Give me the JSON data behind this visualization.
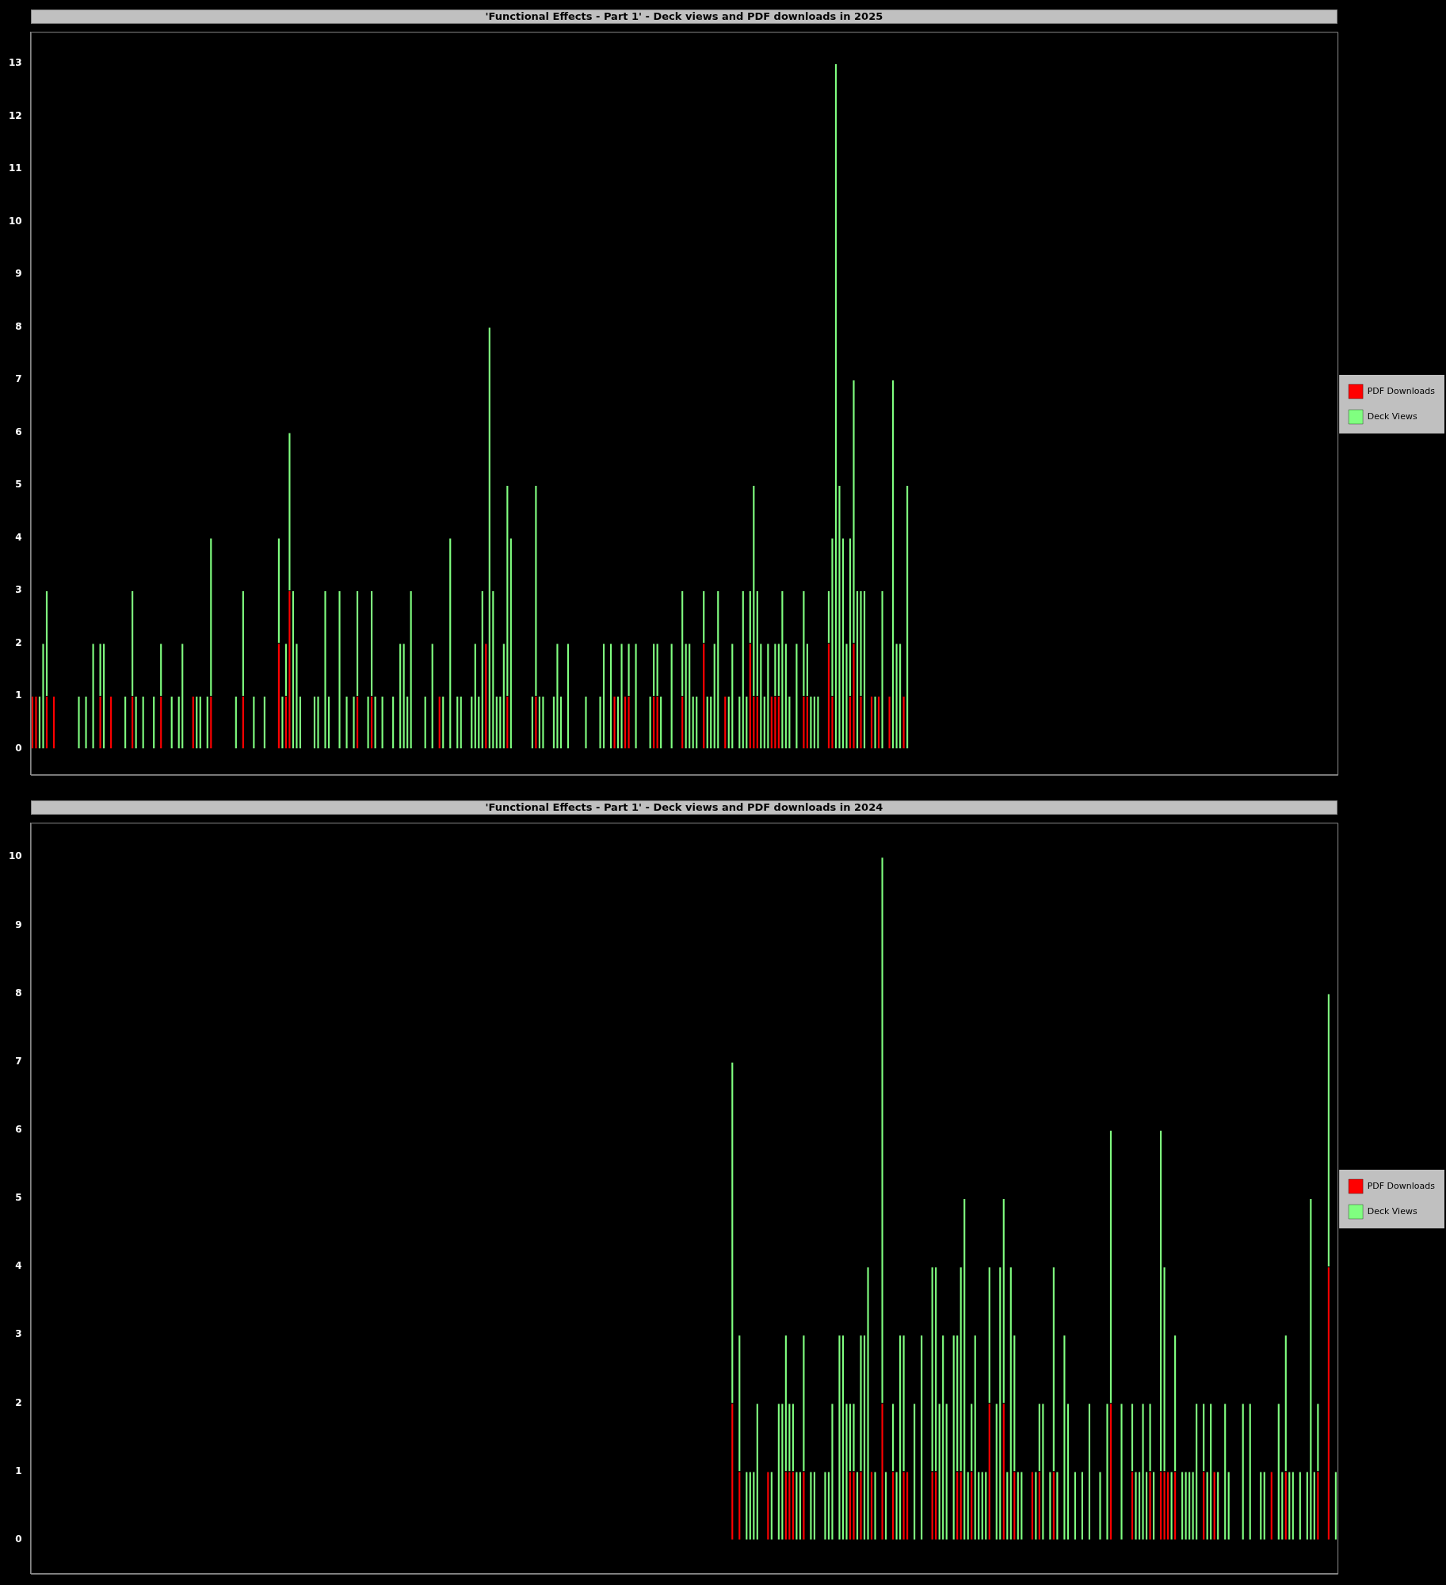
{
  "chart_data": [
    {
      "type": "bar",
      "title": "'Functional Effects - Part 1' - Deck views and PDF downloads in 2025",
      "stacked": true,
      "legend": "right",
      "grid": false,
      "tick_labels": "y",
      "ylim": [
        -0.5,
        13.6
      ],
      "yticks": [
        0,
        1,
        2,
        3,
        4,
        5,
        6,
        7,
        8,
        9,
        10,
        11,
        12,
        13
      ],
      "categories": [
        null,
        null,
        null,
        null,
        null,
        null,
        null,
        null,
        null,
        null,
        null,
        null,
        null,
        null,
        null,
        null,
        null,
        null,
        null,
        null,
        null,
        null,
        null,
        null,
        null,
        null,
        null,
        null,
        null,
        null,
        null,
        null,
        null,
        null,
        null,
        null,
        null,
        null,
        null,
        null,
        null,
        null,
        null,
        null,
        null,
        null,
        null,
        null,
        null,
        null,
        null,
        null,
        null,
        null,
        null,
        null,
        null,
        null,
        null,
        null,
        null,
        null,
        null,
        null,
        null,
        null,
        null,
        null,
        null,
        null,
        null,
        null,
        null,
        null,
        null,
        null,
        null,
        null,
        null,
        null,
        null,
        null,
        null,
        null,
        null,
        null,
        null,
        null,
        null,
        null,
        null,
        null,
        null,
        null,
        null,
        null,
        null,
        null,
        null,
        null,
        null,
        null,
        null,
        null,
        null,
        null,
        null,
        null,
        null,
        null,
        null,
        null,
        null,
        null,
        null,
        null,
        null,
        null,
        null,
        null,
        null,
        null,
        null,
        null,
        null,
        null,
        null,
        null,
        null,
        null,
        null,
        null,
        null,
        null,
        null,
        null,
        null,
        null,
        null,
        null,
        null,
        null,
        null,
        null,
        null,
        null,
        null,
        null,
        null,
        null,
        null,
        null,
        null,
        null,
        null,
        null,
        null,
        null,
        null,
        null,
        null,
        null,
        null,
        null,
        null,
        null,
        null,
        null,
        null,
        null,
        null,
        null,
        null,
        null,
        null,
        null,
        null,
        null,
        null,
        null,
        null,
        null,
        null,
        null,
        null,
        null,
        null,
        null,
        null,
        null,
        null,
        null,
        null,
        null,
        null,
        null,
        null,
        null,
        null,
        null,
        null,
        null,
        null,
        null,
        null,
        null,
        null,
        null,
        null,
        null,
        null,
        null,
        null,
        null,
        null,
        null,
        null,
        null,
        null,
        null,
        null,
        null,
        null,
        null,
        null,
        null,
        null,
        null,
        null,
        null,
        null,
        null,
        null,
        null,
        null,
        null,
        null,
        null,
        null,
        null,
        null,
        null,
        null,
        null,
        null,
        null,
        null,
        null,
        null,
        null,
        null,
        null,
        null,
        null,
        null,
        null,
        null,
        null,
        null,
        null,
        null,
        null,
        null,
        null,
        null,
        null,
        null,
        null,
        null,
        null,
        null,
        null,
        null,
        null,
        null,
        null,
        null,
        null,
        null,
        null,
        null,
        null,
        null,
        null,
        null,
        null,
        null,
        null,
        null,
        null,
        null,
        null,
        null,
        null,
        null,
        null,
        null,
        null,
        null,
        null,
        null,
        null,
        null,
        null,
        null,
        null,
        null,
        null,
        null,
        null,
        null,
        null,
        null,
        null,
        null,
        null,
        null,
        null,
        null,
        null,
        null,
        null,
        null,
        null,
        null,
        null,
        null,
        null,
        null,
        null,
        null,
        null,
        null,
        null,
        null,
        null,
        null,
        null,
        null,
        null,
        null,
        null,
        null,
        null,
        null,
        null,
        null,
        null,
        null,
        null,
        null,
        null,
        null,
        null,
        null,
        null,
        null,
        null,
        null,
        null,
        null,
        null,
        null,
        null,
        null,
        null
      ],
      "series": [
        {
          "name": "PDF Downloads",
          "color": "#ff0000",
          "values": [
            1,
            1,
            0,
            0,
            1,
            0,
            1,
            0,
            0,
            0,
            0,
            0,
            0,
            0,
            0,
            0,
            0,
            0,
            0,
            1,
            0,
            0,
            1,
            0,
            0,
            0,
            0,
            0,
            1,
            0,
            0,
            0,
            0,
            0,
            0,
            0,
            1,
            0,
            0,
            0,
            0,
            0,
            0,
            0,
            0,
            1,
            0,
            0,
            0,
            0,
            1,
            0,
            0,
            0,
            0,
            0,
            0,
            0,
            0,
            1,
            0,
            0,
            0,
            0,
            0,
            0,
            0,
            0,
            0,
            2,
            0,
            1,
            3,
            0,
            0,
            0,
            0,
            0,
            0,
            0,
            0,
            0,
            0,
            0,
            0,
            0,
            0,
            0,
            0,
            0,
            0,
            1,
            0,
            0,
            0,
            1,
            0,
            0,
            0,
            0,
            0,
            0,
            0,
            0,
            0,
            0,
            0,
            0,
            0,
            0,
            0,
            0,
            0,
            0,
            1,
            0,
            0,
            0,
            0,
            0,
            0,
            0,
            0,
            0,
            0,
            0,
            0,
            2,
            0,
            0,
            0,
            0,
            0,
            1,
            0,
            0,
            0,
            0,
            0,
            0,
            0,
            1,
            0,
            0,
            0,
            0,
            0,
            0,
            0,
            0,
            0,
            0,
            0,
            0,
            0,
            0,
            0,
            0,
            0,
            0,
            0,
            0,
            0,
            1,
            0,
            0,
            1,
            1,
            0,
            0,
            0,
            0,
            0,
            0,
            1,
            1,
            0,
            0,
            0,
            0,
            0,
            0,
            1,
            0,
            0,
            0,
            0,
            0,
            2,
            0,
            0,
            0,
            0,
            0,
            1,
            0,
            0,
            0,
            0,
            0,
            0,
            2,
            1,
            1,
            0,
            0,
            0,
            1,
            1,
            1,
            0,
            0,
            0,
            0,
            0,
            0,
            1,
            1,
            0,
            0,
            0,
            0,
            0,
            2,
            1,
            0,
            0,
            0,
            0,
            1,
            2,
            0,
            1,
            0,
            0,
            1,
            0,
            1,
            0,
            0,
            1,
            0,
            0,
            0,
            1,
            0,
            null,
            null,
            null,
            null,
            null,
            null,
            null,
            null,
            null,
            null,
            null,
            null,
            null,
            null,
            null,
            null,
            null,
            null,
            null,
            null,
            null,
            null,
            null,
            null,
            null,
            null,
            null,
            null,
            null,
            null,
            null,
            null,
            null,
            null,
            null,
            null,
            null,
            null,
            null,
            null,
            null,
            null,
            null,
            null,
            null,
            null,
            null,
            null,
            null,
            null,
            null,
            null,
            null,
            null,
            null,
            null,
            null,
            null,
            null,
            null,
            null,
            null,
            null,
            null,
            null,
            null,
            null,
            null,
            null,
            null,
            null,
            null,
            null,
            null,
            null,
            null,
            null,
            null,
            null,
            null,
            null,
            null,
            null,
            null,
            null,
            null,
            null,
            null,
            null,
            null,
            null,
            null,
            null,
            null,
            null,
            null,
            null,
            null,
            null,
            null,
            null,
            null,
            null,
            null,
            null,
            null,
            null,
            null,
            null,
            null,
            null,
            null,
            null,
            null,
            null,
            null,
            null,
            null,
            null,
            null
          ]
        },
        {
          "name": "Deck Views",
          "color": "#80ff80",
          "values": [
            0,
            0,
            1,
            2,
            2,
            0,
            0,
            0,
            0,
            0,
            0,
            0,
            0,
            1,
            0,
            1,
            0,
            2,
            0,
            1,
            2,
            0,
            0,
            0,
            0,
            0,
            1,
            0,
            2,
            1,
            0,
            1,
            0,
            0,
            1,
            0,
            1,
            0,
            0,
            1,
            0,
            1,
            2,
            0,
            0,
            0,
            1,
            1,
            0,
            1,
            3,
            0,
            0,
            0,
            0,
            0,
            0,
            1,
            0,
            2,
            0,
            0,
            1,
            0,
            0,
            1,
            0,
            0,
            0,
            2,
            1,
            1,
            3,
            3,
            2,
            1,
            0,
            0,
            0,
            1,
            1,
            0,
            3,
            1,
            0,
            0,
            3,
            0,
            1,
            0,
            1,
            2,
            0,
            0,
            1,
            2,
            1,
            0,
            1,
            0,
            0,
            1,
            0,
            2,
            2,
            1,
            3,
            0,
            0,
            0,
            1,
            0,
            2,
            0,
            0,
            1,
            0,
            4,
            0,
            1,
            1,
            0,
            0,
            1,
            2,
            1,
            3,
            0,
            8,
            3,
            1,
            1,
            2,
            4,
            4,
            0,
            0,
            0,
            0,
            0,
            1,
            4,
            1,
            1,
            0,
            0,
            1,
            2,
            1,
            0,
            2,
            0,
            0,
            0,
            0,
            1,
            0,
            0,
            0,
            1,
            2,
            0,
            2,
            0,
            1,
            2,
            0,
            1,
            0,
            2,
            0,
            0,
            0,
            1,
            1,
            1,
            1,
            0,
            0,
            2,
            0,
            0,
            2,
            2,
            2,
            1,
            1,
            0,
            1,
            1,
            1,
            2,
            3,
            0,
            0,
            1,
            2,
            0,
            1,
            3,
            1,
            1,
            4,
            2,
            2,
            1,
            2,
            0,
            1,
            1,
            3,
            2,
            1,
            0,
            2,
            0,
            2,
            1,
            1,
            1,
            1,
            0,
            0,
            1,
            3,
            13,
            5,
            4,
            2,
            3,
            5,
            3,
            2,
            3,
            0,
            0,
            1,
            0,
            3,
            0,
            0,
            7,
            2,
            2,
            0,
            5,
            null,
            null,
            null,
            null,
            null,
            null,
            null,
            null,
            null,
            null,
            null,
            null,
            null,
            null,
            null,
            null,
            null,
            null,
            null,
            null,
            null,
            null,
            null,
            null,
            null,
            null,
            null,
            null,
            null,
            null,
            null,
            null,
            null,
            null,
            null,
            null,
            null,
            null,
            null,
            null,
            null,
            null,
            null,
            null,
            null,
            null,
            null,
            null,
            null,
            null,
            null,
            null,
            null,
            null,
            null,
            null,
            null,
            null,
            null,
            null,
            null,
            null,
            null,
            null,
            null,
            null,
            null,
            null,
            null,
            null,
            null,
            null,
            null,
            null,
            null,
            null,
            null,
            null,
            null,
            null,
            null,
            null,
            null,
            null,
            null,
            null,
            null,
            null,
            null,
            null,
            null,
            null,
            null,
            null,
            null,
            null,
            null,
            null,
            null,
            null,
            null,
            null,
            null,
            null,
            null,
            null,
            null,
            null,
            null,
            null,
            null,
            null,
            null,
            null,
            null,
            null,
            null,
            null,
            null,
            null
          ]
        }
      ]
    },
    {
      "type": "bar",
      "title": "'Functional Effects - Part 1' - Deck views and PDF downloads in 2024",
      "stacked": true,
      "legend": "right",
      "grid": false,
      "tick_labels": "y",
      "ylim": [
        -0.5,
        10.5
      ],
      "yticks": [
        0,
        1,
        2,
        3,
        4,
        5,
        6,
        7,
        8,
        9,
        10
      ],
      "categories": [
        null,
        null,
        null,
        null,
        null,
        null,
        null,
        null,
        null,
        null,
        null,
        null,
        null,
        null,
        null,
        null,
        null,
        null,
        null,
        null,
        null,
        null,
        null,
        null,
        null,
        null,
        null,
        null,
        null,
        null,
        null,
        null,
        null,
        null,
        null,
        null,
        null,
        null,
        null,
        null,
        null,
        null,
        null,
        null,
        null,
        null,
        null,
        null,
        null,
        null,
        null,
        null,
        null,
        null,
        null,
        null,
        null,
        null,
        null,
        null,
        null,
        null,
        null,
        null,
        null,
        null,
        null,
        null,
        null,
        null,
        null,
        null,
        null,
        null,
        null,
        null,
        null,
        null,
        null,
        null,
        null,
        null,
        null,
        null,
        null,
        null,
        null,
        null,
        null,
        null,
        null,
        null,
        null,
        null,
        null,
        null,
        null,
        null,
        null,
        null,
        null,
        null,
        null,
        null,
        null,
        null,
        null,
        null,
        null,
        null,
        null,
        null,
        null,
        null,
        null,
        null,
        null,
        null,
        null,
        null,
        null,
        null,
        null,
        null,
        null,
        null,
        null,
        null,
        null,
        null,
        null,
        null,
        null,
        null,
        null,
        null,
        null,
        null,
        null,
        null,
        null,
        null,
        null,
        null,
        null,
        null,
        null,
        null,
        null,
        null,
        null,
        null,
        null,
        null,
        null,
        null,
        null,
        null,
        null,
        null,
        null,
        null,
        null,
        null,
        null,
        null,
        null,
        null,
        null,
        null,
        null,
        null,
        null,
        null,
        null,
        null,
        null,
        null,
        null,
        null,
        null,
        null,
        null,
        null,
        null,
        null,
        null,
        null,
        null,
        null,
        null,
        null,
        null,
        null,
        null,
        null,
        null,
        null,
        null,
        null,
        null,
        null,
        null,
        null,
        null,
        null,
        null,
        null,
        null,
        null,
        null,
        null,
        null,
        null,
        null,
        null,
        null,
        null,
        null,
        null,
        null,
        null,
        null,
        null,
        null,
        null,
        null,
        null,
        null,
        null,
        null,
        null,
        null,
        null,
        null,
        null,
        null,
        null,
        null,
        null,
        null,
        null,
        null,
        null,
        null,
        null,
        null,
        null,
        null,
        null,
        null,
        null,
        null,
        null,
        null,
        null,
        null,
        null,
        null,
        null,
        null,
        null,
        null,
        null,
        null,
        null,
        null,
        null,
        null,
        null,
        null,
        null,
        null,
        null,
        null,
        null,
        null,
        null,
        null,
        null,
        null,
        null,
        null,
        null,
        null,
        null,
        null,
        null,
        null,
        null,
        null,
        null,
        null,
        null,
        null,
        null,
        null,
        null,
        null,
        null,
        null,
        null,
        null,
        null,
        null,
        null,
        null,
        null,
        null,
        null,
        null,
        null,
        null,
        null,
        null,
        null,
        null,
        null,
        null,
        null,
        null,
        null,
        null,
        null,
        null,
        null,
        null,
        null,
        null,
        null,
        null,
        null,
        null,
        null,
        null,
        null,
        null,
        null,
        null,
        null,
        null,
        null,
        null,
        null,
        null,
        null,
        null,
        null,
        null,
        null,
        null,
        null,
        null,
        null,
        null,
        null,
        null,
        null,
        null,
        null,
        null,
        null,
        null,
        null,
        null,
        null
      ],
      "series": [
        {
          "name": "PDF Downloads",
          "color": "#ff0000",
          "values": [
            null,
            null,
            null,
            null,
            null,
            null,
            null,
            null,
            null,
            null,
            null,
            null,
            null,
            null,
            null,
            null,
            null,
            null,
            null,
            null,
            null,
            null,
            null,
            null,
            null,
            null,
            null,
            null,
            null,
            null,
            null,
            null,
            null,
            null,
            null,
            null,
            null,
            null,
            null,
            null,
            null,
            null,
            null,
            null,
            null,
            null,
            null,
            null,
            null,
            null,
            null,
            null,
            null,
            null,
            null,
            null,
            null,
            null,
            null,
            null,
            null,
            null,
            null,
            null,
            null,
            null,
            null,
            null,
            null,
            null,
            null,
            null,
            null,
            null,
            null,
            null,
            null,
            null,
            null,
            null,
            null,
            null,
            null,
            null,
            null,
            null,
            null,
            null,
            null,
            null,
            null,
            null,
            null,
            null,
            null,
            null,
            null,
            null,
            null,
            null,
            null,
            null,
            null,
            null,
            null,
            null,
            null,
            null,
            null,
            null,
            null,
            null,
            null,
            null,
            null,
            null,
            null,
            null,
            null,
            null,
            null,
            null,
            null,
            null,
            null,
            null,
            null,
            null,
            null,
            null,
            null,
            null,
            null,
            null,
            null,
            null,
            null,
            null,
            null,
            null,
            null,
            null,
            null,
            null,
            null,
            null,
            null,
            null,
            null,
            null,
            null,
            null,
            null,
            null,
            null,
            null,
            null,
            null,
            null,
            null,
            null,
            null,
            null,
            null,
            null,
            null,
            null,
            null,
            null,
            null,
            null,
            null,
            null,
            null,
            null,
            null,
            null,
            null,
            null,
            null,
            null,
            null,
            null,
            null,
            null,
            null,
            null,
            null,
            null,
            null,
            null,
            null,
            null,
            null,
            null,
            null,
            2,
            0,
            1,
            0,
            0,
            0,
            0,
            0,
            0,
            0,
            1,
            0,
            0,
            0,
            0,
            1,
            1,
            1,
            0,
            0,
            1,
            0,
            0,
            0,
            0,
            0,
            0,
            0,
            0,
            0,
            0,
            0,
            0,
            1,
            1,
            0,
            1,
            0,
            0,
            1,
            0,
            0,
            2,
            0,
            0,
            1,
            0,
            0,
            1,
            1,
            0,
            0,
            0,
            0,
            0,
            0,
            1,
            1,
            0,
            0,
            0,
            0,
            0,
            1,
            1,
            0,
            0,
            1,
            0,
            0,
            0,
            0,
            2,
            0,
            0,
            0,
            2,
            0,
            0,
            1,
            0,
            0,
            0,
            0,
            1,
            0,
            1,
            0,
            0,
            0,
            1,
            0,
            0,
            0,
            0,
            0,
            0,
            0,
            0,
            0,
            0,
            0,
            0,
            0,
            0,
            0,
            2,
            0,
            0,
            0,
            0,
            0,
            1,
            0,
            0,
            0,
            0,
            1,
            0,
            0,
            1,
            1,
            1,
            0,
            1,
            0,
            0,
            0,
            0,
            0,
            0,
            0,
            1,
            0,
            0,
            1,
            0,
            0,
            0,
            0,
            0,
            0,
            0,
            0,
            0,
            0,
            0,
            0,
            0,
            0,
            0,
            1,
            0,
            0,
            0,
            1,
            0,
            0,
            0,
            0,
            0,
            0,
            0,
            0,
            1,
            0,
            0,
            4,
            0,
            0
          ]
        },
        {
          "name": "Deck Views",
          "color": "#80ff80",
          "values": [
            null,
            null,
            null,
            null,
            null,
            null,
            null,
            null,
            null,
            null,
            null,
            null,
            null,
            null,
            null,
            null,
            null,
            null,
            null,
            null,
            null,
            null,
            null,
            null,
            null,
            null,
            null,
            null,
            null,
            null,
            null,
            null,
            null,
            null,
            null,
            null,
            null,
            null,
            null,
            null,
            null,
            null,
            null,
            null,
            null,
            null,
            null,
            null,
            null,
            null,
            null,
            null,
            null,
            null,
            null,
            null,
            null,
            null,
            null,
            null,
            null,
            null,
            null,
            null,
            null,
            null,
            null,
            null,
            null,
            null,
            null,
            null,
            null,
            null,
            null,
            null,
            null,
            null,
            null,
            null,
            null,
            null,
            null,
            null,
            null,
            null,
            null,
            null,
            null,
            null,
            null,
            null,
            null,
            null,
            null,
            null,
            null,
            null,
            null,
            null,
            null,
            null,
            null,
            null,
            null,
            null,
            null,
            null,
            null,
            null,
            null,
            null,
            null,
            null,
            null,
            null,
            null,
            null,
            null,
            null,
            null,
            null,
            null,
            null,
            null,
            null,
            null,
            null,
            null,
            null,
            null,
            null,
            null,
            null,
            null,
            null,
            null,
            null,
            null,
            null,
            null,
            null,
            null,
            null,
            null,
            null,
            null,
            null,
            null,
            null,
            null,
            null,
            null,
            null,
            null,
            null,
            null,
            null,
            null,
            null,
            null,
            null,
            null,
            null,
            null,
            null,
            null,
            null,
            null,
            null,
            null,
            null,
            null,
            null,
            null,
            null,
            null,
            null,
            null,
            null,
            null,
            null,
            null,
            null,
            null,
            null,
            null,
            null,
            null,
            null,
            null,
            null,
            null,
            null,
            null,
            null,
            5,
            0,
            2,
            0,
            1,
            1,
            1,
            2,
            0,
            0,
            0,
            1,
            0,
            2,
            2,
            2,
            1,
            1,
            1,
            1,
            2,
            0,
            1,
            1,
            0,
            0,
            1,
            1,
            2,
            0,
            3,
            3,
            2,
            1,
            1,
            1,
            2,
            3,
            4,
            0,
            1,
            0,
            8,
            1,
            0,
            1,
            1,
            3,
            2,
            0,
            0,
            2,
            0,
            3,
            0,
            0,
            3,
            3,
            2,
            3,
            2,
            0,
            3,
            2,
            3,
            5,
            1,
            1,
            3,
            1,
            1,
            1,
            2,
            0,
            2,
            4,
            3,
            1,
            4,
            2,
            1,
            1,
            0,
            0,
            0,
            1,
            1,
            2,
            0,
            1,
            3,
            1,
            0,
            3,
            2,
            0,
            1,
            0,
            1,
            0,
            2,
            0,
            0,
            1,
            0,
            2,
            4,
            0,
            0,
            2,
            0,
            0,
            1,
            1,
            1,
            2,
            1,
            1,
            1,
            0,
            5,
            3,
            0,
            1,
            2,
            0,
            1,
            1,
            1,
            1,
            2,
            0,
            1,
            1,
            2,
            0,
            1,
            0,
            2,
            1,
            0,
            0,
            0,
            2,
            0,
            2,
            0,
            0,
            1,
            1,
            0,
            0,
            0,
            2,
            1,
            2,
            1,
            1,
            0,
            1,
            0,
            1,
            5,
            1,
            1,
            0,
            0,
            4,
            0,
            1
          ]
        }
      ]
    }
  ]
}
